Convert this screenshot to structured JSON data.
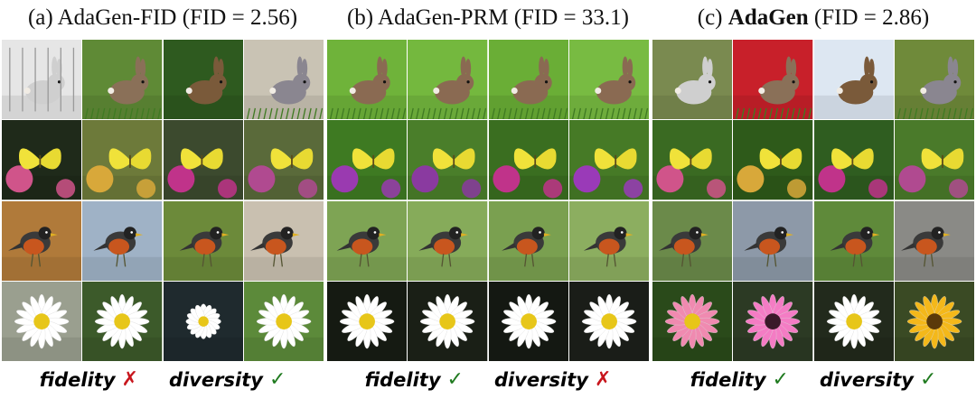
{
  "panels": [
    {
      "label": "(a)",
      "method": "AdaGen-FID",
      "method_bold": false,
      "metric": "(FID = 2.56)",
      "verdicts": [
        {
          "label": "fidelity",
          "ok": false
        },
        {
          "label": "diversity",
          "ok": true
        }
      ],
      "style": "diverse"
    },
    {
      "label": "(b)",
      "method": "AdaGen-PRM",
      "method_bold": false,
      "metric": "(FID = 33.1)",
      "verdicts": [
        {
          "label": "fidelity",
          "ok": true
        },
        {
          "label": "diversity",
          "ok": false
        }
      ],
      "style": "uniform"
    },
    {
      "label": "(c)",
      "method": "AdaGen",
      "method_bold": true,
      "metric": "(FID = 2.86)",
      "verdicts": [
        {
          "label": "fidelity",
          "ok": true
        },
        {
          "label": "diversity",
          "ok": true
        }
      ],
      "style": "balanced"
    }
  ],
  "rows": [
    "rabbit",
    "butterfly",
    "robin",
    "daisy"
  ],
  "marks": {
    "ok": "✓",
    "fail": "✗"
  },
  "colors": {
    "check": "#1f7a1f",
    "cross": "#c8161d"
  }
}
